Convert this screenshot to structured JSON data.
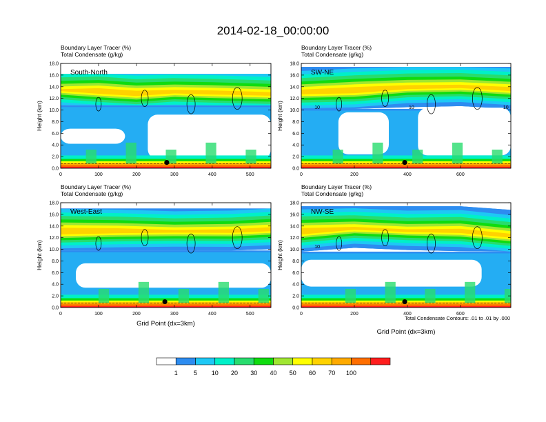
{
  "figure": {
    "title": "2014-02-18_00:00:00",
    "footnote": "Total Condensate Contours: .01 to .01 by .000"
  },
  "colors": {
    "scale": [
      "#ffffff",
      "#2d8cf0",
      "#1ec8f5",
      "#00f0c8",
      "#28dc6e",
      "#0fdc0f",
      "#a0e632",
      "#ffff00",
      "#ffd200",
      "#ffaa00",
      "#ff6e00",
      "#ff1e1e"
    ],
    "contour": "#000000",
    "marker": "#000000"
  },
  "colorbar": {
    "labels": [
      "1",
      "5",
      "10",
      "20",
      "30",
      "40",
      "50",
      "60",
      "70",
      "100"
    ]
  },
  "chart_data": [
    {
      "type": "heatmap",
      "panel_label": "South-North",
      "title_lines": [
        "Boundary Layer Tracer   (%)",
        "Total Condensate   (g/kg)"
      ],
      "ylabel": "Height (km)",
      "xlabel": "",
      "xlim": [
        0,
        555
      ],
      "ylim": [
        0,
        18
      ],
      "xticks": [
        "0",
        "100",
        "200",
        "300",
        "400",
        "500"
      ],
      "yticks": [
        "0.0",
        "2.0",
        "4.0",
        "6.0",
        "8.0",
        "10.0",
        "12.0",
        "14.0",
        "16.0",
        "18.0"
      ],
      "contour_labels": [],
      "marker": {
        "x": 280,
        "y": 1.0
      },
      "upper_band": {
        "base": 10.8,
        "top": 16.2,
        "core": [
          {
            "x": 0,
            "y": 13.2
          },
          {
            "x": 100,
            "y": 13.0
          },
          {
            "x": 200,
            "y": 13.0
          },
          {
            "x": 300,
            "y": 13.4
          },
          {
            "x": 400,
            "y": 12.8
          },
          {
            "x": 555,
            "y": 12.4
          }
        ]
      },
      "clear_regions": [
        {
          "x0": 0,
          "x1": 170,
          "y0": 4.2,
          "y1": 6.8
        },
        {
          "x0": 230,
          "x1": 555,
          "y0": 1.6,
          "y1": 9.2
        }
      ]
    },
    {
      "type": "heatmap",
      "panel_label": "SW-NE",
      "title_lines": [
        "Boundary Layer Tracer   (%)",
        "Total Condensate   (g/kg)"
      ],
      "ylabel": "Height (km)",
      "xlabel": "",
      "xlim": [
        0,
        790
      ],
      "ylim": [
        0,
        18
      ],
      "xticks": [
        "0",
        "200",
        "400",
        "600"
      ],
      "yticks": [
        "0.0",
        "2.0",
        "4.0",
        "6.0",
        "8.0",
        "10.0",
        "12.0",
        "14.0",
        "16.0",
        "18.0"
      ],
      "contour_labels": [
        "10",
        "10",
        "10"
      ],
      "marker": {
        "x": 390,
        "y": 1.0
      },
      "upper_band": {
        "base": 10.2,
        "top": 17.4,
        "core": [
          {
            "x": 0,
            "y": 12.8
          },
          {
            "x": 200,
            "y": 13.4
          },
          {
            "x": 400,
            "y": 14.2
          },
          {
            "x": 600,
            "y": 14.0
          },
          {
            "x": 790,
            "y": 13.2
          }
        ]
      },
      "clear_regions": [
        {
          "x0": 140,
          "x1": 330,
          "y0": 2.4,
          "y1": 9.6
        },
        {
          "x0": 440,
          "x1": 790,
          "y0": 2.2,
          "y1": 10.4
        }
      ]
    },
    {
      "type": "heatmap",
      "panel_label": "West-East",
      "title_lines": [
        "Boundary Layer Tracer   (%)",
        "Total Condensate   (g/kg)"
      ],
      "ylabel": "Height (km)",
      "xlabel": "Grid Point (dx=3km)",
      "xlim": [
        0,
        555
      ],
      "ylim": [
        0,
        18
      ],
      "xticks": [
        "0",
        "100",
        "200",
        "300",
        "400",
        "500"
      ],
      "yticks": [
        "0.0",
        "2.0",
        "4.0",
        "6.0",
        "8.0",
        "10.0",
        "12.0",
        "14.0",
        "16.0",
        "18.0"
      ],
      "contour_labels": [],
      "marker": {
        "x": 275,
        "y": 1.0
      },
      "upper_band": {
        "base": 9.8,
        "top": 17.0,
        "core": [
          {
            "x": 0,
            "y": 13.0
          },
          {
            "x": 150,
            "y": 13.4
          },
          {
            "x": 300,
            "y": 13.2
          },
          {
            "x": 450,
            "y": 12.8
          },
          {
            "x": 555,
            "y": 13.2
          }
        ]
      },
      "clear_regions": [
        {
          "x0": 40,
          "x1": 555,
          "y0": 3.4,
          "y1": 7.6
        }
      ]
    },
    {
      "type": "heatmap",
      "panel_label": "NW-SE",
      "title_lines": [
        "Boundary Layer Tracer   (%)",
        "Total Condensate   (g/kg)"
      ],
      "ylabel": "Height (km)",
      "xlabel": "Grid Point (dx=3km)",
      "xlim": [
        0,
        790
      ],
      "ylim": [
        0,
        18
      ],
      "xticks": [
        "0",
        "200",
        "400",
        "600"
      ],
      "yticks": [
        "0.0",
        "2.0",
        "4.0",
        "6.0",
        "8.0",
        "10.0",
        "12.0",
        "14.0",
        "16.0",
        "18.0"
      ],
      "contour_labels": [
        "10"
      ],
      "marker": {
        "x": 390,
        "y": 1.0
      },
      "upper_band": {
        "base": 9.6,
        "top": 17.4,
        "core": [
          {
            "x": 0,
            "y": 13.2
          },
          {
            "x": 200,
            "y": 13.8
          },
          {
            "x": 400,
            "y": 13.0
          },
          {
            "x": 600,
            "y": 12.8
          },
          {
            "x": 790,
            "y": 12.4
          }
        ]
      },
      "clear_regions": [
        {
          "x0": 0,
          "x1": 680,
          "y0": 3.6,
          "y1": 8.2
        }
      ]
    }
  ]
}
